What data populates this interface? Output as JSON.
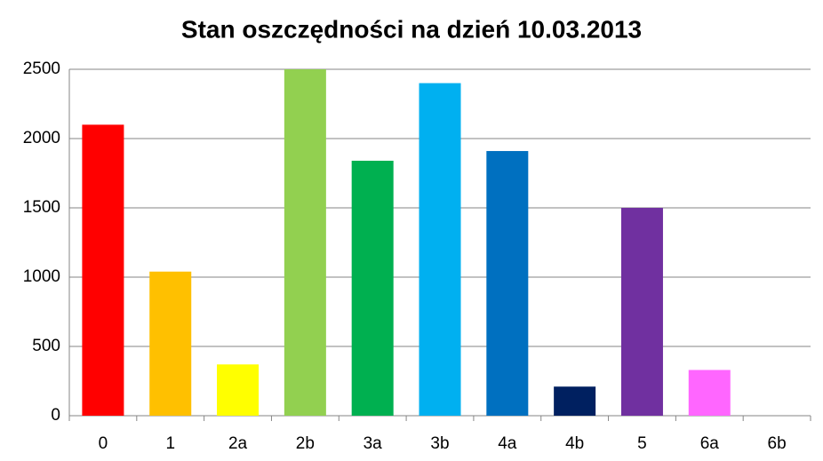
{
  "chart_data": {
    "type": "bar",
    "title": "Stan oszczędności na dzień 10.03.2013",
    "categories": [
      "0",
      "1",
      "2a",
      "2b",
      "3a",
      "3b",
      "4a",
      "4b",
      "5",
      "6a",
      "6b"
    ],
    "values": [
      2100,
      1040,
      370,
      2500,
      1840,
      2400,
      1910,
      210,
      1500,
      330,
      0
    ],
    "colors": [
      "#ff0000",
      "#ffc000",
      "#ffff00",
      "#92d050",
      "#00b050",
      "#00b0f0",
      "#0070c0",
      "#002060",
      "#7030a0",
      "#ff66ff",
      "#ff66ff"
    ],
    "ylim": [
      0,
      2500
    ],
    "yticks": [
      0,
      500,
      1000,
      1500,
      2000,
      2500
    ],
    "grid": true
  }
}
